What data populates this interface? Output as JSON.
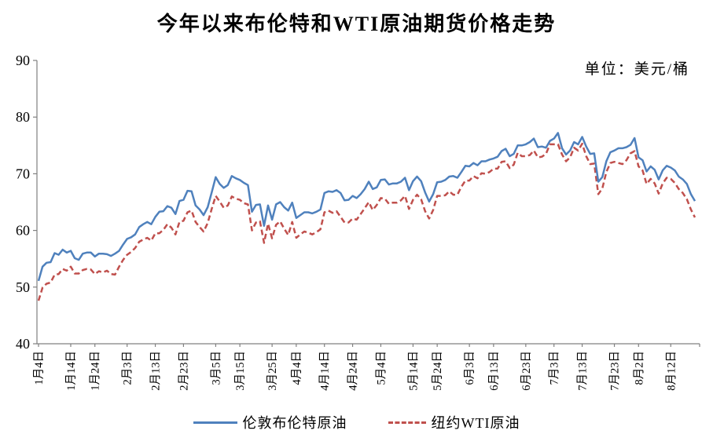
{
  "chart_data": {
    "type": "line",
    "title": "今年以来布伦特和WTI原油期货价格走势",
    "unit_label": "单位：美元/桶",
    "xlabel": "",
    "ylabel": "",
    "ylim": [
      40,
      90
    ],
    "y_ticks": [
      40,
      50,
      60,
      70,
      80,
      90
    ],
    "grid": false,
    "legend_position": "bottom",
    "axis_color": "#808080",
    "x_tick_labels": [
      "1月4日",
      "1月14日",
      "1月24日",
      "2月3日",
      "2月13日",
      "2月23日",
      "3月5日",
      "3月15日",
      "3月25日",
      "4月4日",
      "4月14日",
      "4月24日",
      "5月4日",
      "5月14日",
      "5月24日",
      "6月3日",
      "6月13日",
      "6月23日",
      "7月3日",
      "7月13日",
      "7月23日",
      "8月2日",
      "8月12日"
    ],
    "x_tick_indices": [
      0,
      8,
      14,
      22,
      29,
      36,
      44,
      50,
      58,
      64,
      71,
      78,
      85,
      93,
      99,
      107,
      113,
      121,
      128,
      135,
      143,
      149,
      157
    ],
    "series": [
      {
        "name": "伦敦布伦特原油",
        "color": "#4F81BD",
        "style": "solid",
        "values": [
          51.1,
          53.6,
          54.3,
          54.4,
          56.0,
          55.7,
          56.6,
          56.1,
          56.4,
          55.1,
          54.8,
          55.9,
          56.1,
          56.1,
          55.4,
          55.9,
          55.9,
          55.8,
          55.5,
          55.9,
          56.4,
          57.5,
          58.5,
          58.8,
          59.3,
          60.6,
          61.1,
          61.5,
          61.1,
          62.4,
          63.3,
          63.4,
          64.3,
          64.0,
          62.9,
          65.2,
          65.4,
          67.0,
          66.9,
          64.4,
          63.7,
          62.7,
          64.1,
          66.7,
          69.4,
          68.2,
          67.5,
          68.0,
          69.6,
          69.2,
          68.9,
          68.4,
          68.0,
          63.3,
          64.5,
          64.6,
          60.8,
          64.4,
          61.9,
          64.6,
          65.0,
          64.1,
          63.5,
          64.9,
          62.2,
          62.7,
          63.2,
          63.2,
          63.0,
          63.3,
          63.7,
          66.6,
          66.9,
          66.8,
          67.1,
          66.6,
          65.3,
          65.4,
          66.1,
          65.7,
          66.4,
          67.3,
          68.6,
          67.3,
          67.6,
          68.9,
          69.0,
          68.1,
          68.3,
          68.3,
          68.6,
          69.3,
          67.1,
          68.7,
          69.5,
          68.7,
          66.7,
          65.1,
          66.4,
          68.5,
          68.6,
          68.9,
          69.5,
          69.6,
          69.3,
          70.3,
          71.4,
          71.3,
          71.9,
          71.5,
          72.2,
          72.2,
          72.5,
          72.7,
          73.0,
          74.0,
          74.4,
          73.1,
          73.5,
          75.0,
          75.0,
          75.2,
          75.6,
          76.2,
          74.7,
          74.8,
          74.6,
          75.8,
          76.2,
          77.2,
          74.5,
          73.4,
          74.1,
          75.6,
          75.2,
          76.5,
          74.8,
          73.5,
          73.6,
          68.6,
          69.4,
          72.2,
          73.8,
          74.1,
          74.5,
          74.5,
          74.7,
          75.1,
          76.3,
          72.9,
          72.4,
          70.4,
          71.3,
          70.7,
          69.0,
          70.6,
          71.4,
          71.1,
          70.6,
          69.5,
          69.0,
          68.2,
          66.4,
          65.2
        ]
      },
      {
        "name": "纽约WTI原油",
        "color": "#C0504D",
        "style": "dashed",
        "values": [
          47.6,
          49.9,
          50.6,
          50.8,
          52.2,
          52.3,
          53.2,
          52.9,
          53.6,
          52.4,
          52.4,
          53.0,
          53.2,
          53.1,
          52.3,
          52.8,
          52.6,
          52.9,
          52.3,
          52.2,
          53.6,
          54.8,
          55.7,
          56.2,
          56.9,
          58.0,
          58.4,
          58.7,
          58.2,
          59.5,
          59.5,
          60.1,
          61.1,
          60.5,
          59.3,
          61.5,
          61.7,
          63.2,
          63.5,
          61.5,
          60.6,
          59.8,
          61.3,
          63.8,
          66.1,
          65.1,
          64.0,
          64.4,
          66.0,
          65.6,
          65.4,
          64.8,
          64.6,
          60.0,
          61.4,
          61.6,
          57.8,
          61.2,
          58.6,
          61.0,
          61.6,
          60.3,
          59.2,
          61.5,
          58.7,
          59.3,
          59.8,
          59.6,
          59.3,
          59.7,
          60.2,
          63.2,
          63.5,
          63.1,
          63.4,
          62.4,
          61.4,
          61.4,
          62.1,
          61.9,
          62.9,
          63.9,
          65.0,
          63.6,
          64.5,
          65.7,
          65.6,
          64.7,
          64.9,
          64.9,
          65.3,
          66.1,
          63.8,
          65.4,
          66.3,
          65.5,
          63.4,
          62.1,
          63.6,
          66.1,
          66.1,
          66.2,
          66.9,
          66.3,
          66.3,
          67.7,
          68.8,
          68.8,
          69.6,
          69.2,
          70.1,
          70.0,
          70.3,
          70.9,
          70.9,
          72.1,
          72.2,
          71.0,
          71.6,
          73.7,
          73.1,
          73.1,
          73.3,
          74.1,
          72.9,
          73.0,
          73.5,
          75.2,
          75.2,
          75.2,
          73.4,
          72.2,
          72.9,
          74.6,
          74.1,
          75.3,
          73.1,
          71.7,
          71.8,
          66.4,
          67.4,
          70.3,
          71.9,
          72.1,
          71.9,
          71.7,
          72.4,
          73.6,
          74.0,
          71.3,
          70.6,
          68.2,
          69.1,
          68.3,
          66.5,
          68.3,
          69.3,
          69.1,
          68.4,
          67.3,
          66.6,
          65.5,
          63.7,
          62.3
        ]
      }
    ]
  }
}
